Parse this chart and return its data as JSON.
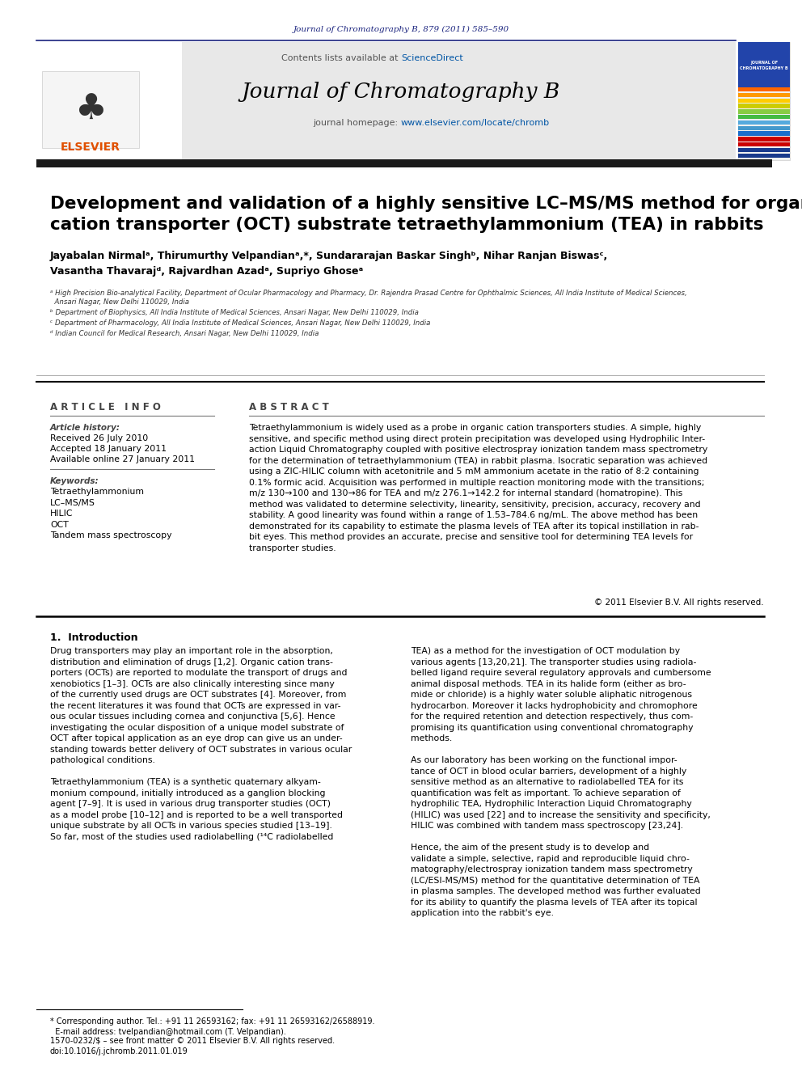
{
  "journal_ref": "Journal of Chromatography B, 879 (2011) 585–590",
  "journal_ref_color": "#1a237e",
  "header_bg": "#e8e8e8",
  "contents_text": "Contents lists available at ",
  "sciencedirect_text": "ScienceDirect",
  "sciencedirect_color": "#0055a5",
  "journal_name": "Journal of Chromatography B",
  "homepage_text": "journal homepage: ",
  "homepage_url": "www.elsevier.com/locate/chromb",
  "homepage_url_color": "#0055a5",
  "article_title": "Development and validation of a highly sensitive LC–MS/MS method for organic\ncation transporter (OCT) substrate tetraethylammonium (TEA) in rabbits",
  "authors": "Jayabalan Nirmalᵃ, Thirumurthy Velpandianᵃ,*, Sundararajan Baskar Singhᵇ, Nihar Ranjan Biswasᶜ,\nVasantha Thavarajᵈ, Rajvardhan Azadᵃ, Supriyo Ghoseᵃ",
  "affil_a": "ᵃ High Precision Bio-analytical Facility, Department of Ocular Pharmacology and Pharmacy, Dr. Rajendra Prasad Centre for Ophthalmic Sciences, All India Institute of Medical Sciences,\n  Ansari Nagar, New Delhi 110029, India",
  "affil_b": "ᵇ Department of Biophysics, All India Institute of Medical Sciences, Ansari Nagar, New Delhi 110029, India",
  "affil_c": "ᶜ Department of Pharmacology, All India Institute of Medical Sciences, Ansari Nagar, New Delhi 110029, India",
  "affil_d": "ᵈ Indian Council for Medical Research, Ansari Nagar, New Delhi 110029, India",
  "article_info_title": "A R T I C L E   I N F O",
  "article_history_label": "Article history:",
  "received": "Received 26 July 2010",
  "accepted": "Accepted 18 January 2011",
  "available": "Available online 27 January 2011",
  "keywords_label": "Keywords:",
  "keywords": [
    "Tetraethylammonium",
    "LC–MS/MS",
    "HILIC",
    "OCT",
    "Tandem mass spectroscopy"
  ],
  "abstract_title": "A B S T R A C T",
  "abstract_text": "Tetraethylammonium is widely used as a probe in organic cation transporters studies. A simple, highly\nsensitive, and specific method using direct protein precipitation was developed using Hydrophilic Inter-\naction Liquid Chromatography coupled with positive electrospray ionization tandem mass spectrometry\nfor the determination of tetraethylammonium (TEA) in rabbit plasma. Isocratic separation was achieved\nusing a ZIC-HILIC column with acetonitrile and 5 mM ammonium acetate in the ratio of 8:2 containing\n0.1% formic acid. Acquisition was performed in multiple reaction monitoring mode with the transitions;\nm/z 130→100 and 130→86 for TEA and m/z 276.1→142.2 for internal standard (homatropine). This\nmethod was validated to determine selectivity, linearity, sensitivity, precision, accuracy, recovery and\nstability. A good linearity was found within a range of 1.53–784.6 ng/mL. The above method has been\ndemonstrated for its capability to estimate the plasma levels of TEA after its topical instillation in rab-\nbit eyes. This method provides an accurate, precise and sensitive tool for determining TEA levels for\ntransporter studies.",
  "copyright_text": "© 2011 Elsevier B.V. All rights reserved.",
  "intro_title": "1.  Introduction",
  "intro_col1": "Drug transporters may play an important role in the absorption,\ndistribution and elimination of drugs [1,2]. Organic cation trans-\nporters (OCTs) are reported to modulate the transport of drugs and\nxenobiotics [1–3]. OCTs are also clinically interesting since many\nof the currently used drugs are OCT substrates [4]. Moreover, from\nthe recent literatures it was found that OCTs are expressed in var-\nous ocular tissues including cornea and conjunctiva [5,6]. Hence\ninvestigating the ocular disposition of a unique model substrate of\nOCT after topical application as an eye drop can give us an under-\nstanding towards better delivery of OCT substrates in various ocular\npathological conditions.\n\nTetraethylammonium (TEA) is a synthetic quaternary alkyam-\nmonium compound, initially introduced as a ganglion blocking\nagent [7–9]. It is used in various drug transporter studies (OCT)\nas a model probe [10–12] and is reported to be a well transported\nunique substrate by all OCTs in various species studied [13–19].\nSo far, most of the studies used radiolabelling (¹⁴C radiolabelled",
  "intro_col2": "TEA) as a method for the investigation of OCT modulation by\nvarious agents [13,20,21]. The transporter studies using radiola-\nbelled ligand require several regulatory approvals and cumbersome\nanimal disposal methods. TEA in its halide form (either as bro-\nmide or chloride) is a highly water soluble aliphatic nitrogenous\nhydrocarbon. Moreover it lacks hydrophobicity and chromophore\nfor the required retention and detection respectively, thus com-\npromising its quantification using conventional chromatography\nmethods.\n\nAs our laboratory has been working on the functional impor-\ntance of OCT in blood ocular barriers, development of a highly\nsensitive method as an alternative to radiolabelled TEA for its\nquantification was felt as important. To achieve separation of\nhydrophilic TEA, Hydrophilic Interaction Liquid Chromatography\n(HILIC) was used [22] and to increase the sensitivity and specificity,\nHILIC was combined with tandem mass spectroscopy [23,24].\n\nHence, the aim of the present study is to develop and\nvalidate a simple, selective, rapid and reproducible liquid chro-\nmatography/electrospray ionization tandem mass spectrometry\n(LC/ESI-MS/MS) method for the quantitative determination of TEA\nin plasma samples. The developed method was further evaluated\nfor its ability to quantify the plasma levels of TEA after its topical\napplication into the rabbit's eye.",
  "footnote_corresponding": "* Corresponding author. Tel.: +91 11 26593162; fax: +91 11 26593162/26588919.\n  E-mail address: tvelpandian@hotmail.com (T. Velpandian).",
  "footnote_issn": "1570-0232/$ – see front matter © 2011 Elsevier B.V. All rights reserved.",
  "footnote_doi": "doi:10.1016/j.jchromb.2011.01.019",
  "page_bg": "#ffffff",
  "text_color": "#000000",
  "header_sep_color": "#1a237e",
  "elsevier_color": "#e05000",
  "stripe_colors": [
    "#1a3a8c",
    "#1a3a8c",
    "#cc0000",
    "#cc0000",
    "#1a6ecc",
    "#4499cc",
    "#55aadd",
    "#44bb44",
    "#88cc44",
    "#cccc00",
    "#ffcc00",
    "#ff9900",
    "#ff6600"
  ]
}
